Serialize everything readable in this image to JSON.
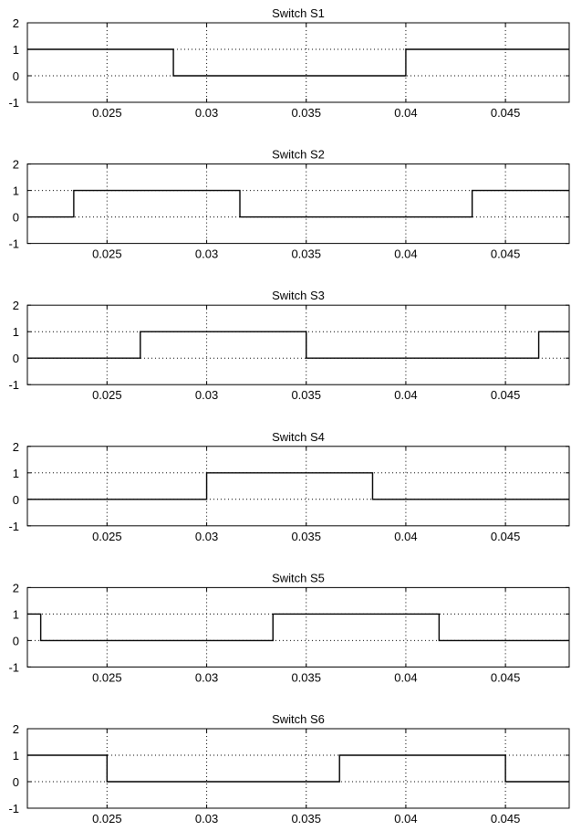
{
  "colors": {
    "background": "#ffffff",
    "line": "#000000",
    "grid": "#000000"
  },
  "chart_data": [
    {
      "type": "line",
      "title": "Switch S1",
      "x": [
        0.021,
        0.02833,
        0.02833,
        0.04,
        0.04,
        0.0482
      ],
      "y": [
        1,
        1,
        0,
        0,
        1,
        1
      ],
      "xlim": [
        0.021,
        0.0482
      ],
      "ylim": [
        -1,
        2
      ],
      "xticks": [
        0.025,
        0.03,
        0.035,
        0.04,
        0.045
      ],
      "xtick_labels": [
        "0.025",
        "0.03",
        "0.035",
        "0.04",
        "0.045"
      ],
      "yticks": [
        -1,
        0,
        1,
        2
      ],
      "ytick_labels": [
        "-1",
        "0",
        "1",
        "2"
      ],
      "grid": true
    },
    {
      "type": "line",
      "title": "Switch S2",
      "x": [
        0.021,
        0.02333,
        0.02333,
        0.03167,
        0.03167,
        0.04333,
        0.04333,
        0.0482
      ],
      "y": [
        0,
        0,
        1,
        1,
        0,
        0,
        1,
        1
      ],
      "xlim": [
        0.021,
        0.0482
      ],
      "ylim": [
        -1,
        2
      ],
      "xticks": [
        0.025,
        0.03,
        0.035,
        0.04,
        0.045
      ],
      "xtick_labels": [
        "0.025",
        "0.03",
        "0.035",
        "0.04",
        "0.045"
      ],
      "yticks": [
        -1,
        0,
        1,
        2
      ],
      "ytick_labels": [
        "-1",
        "0",
        "1",
        "2"
      ],
      "grid": true
    },
    {
      "type": "line",
      "title": "Switch S3",
      "x": [
        0.021,
        0.02667,
        0.02667,
        0.035,
        0.035,
        0.04667,
        0.04667,
        0.0482
      ],
      "y": [
        0,
        0,
        1,
        1,
        0,
        0,
        1,
        1
      ],
      "xlim": [
        0.021,
        0.0482
      ],
      "ylim": [
        -1,
        2
      ],
      "xticks": [
        0.025,
        0.03,
        0.035,
        0.04,
        0.045
      ],
      "xtick_labels": [
        "0.025",
        "0.03",
        "0.035",
        "0.04",
        "0.045"
      ],
      "yticks": [
        -1,
        0,
        1,
        2
      ],
      "ytick_labels": [
        "-1",
        "0",
        "1",
        "2"
      ],
      "grid": true
    },
    {
      "type": "line",
      "title": "Switch S4",
      "x": [
        0.021,
        0.03,
        0.03,
        0.03833,
        0.03833,
        0.0482
      ],
      "y": [
        0,
        0,
        1,
        1,
        0,
        0
      ],
      "xlim": [
        0.021,
        0.0482
      ],
      "ylim": [
        -1,
        2
      ],
      "xticks": [
        0.025,
        0.03,
        0.035,
        0.04,
        0.045
      ],
      "xtick_labels": [
        "0.025",
        "0.03",
        "0.035",
        "0.04",
        "0.045"
      ],
      "yticks": [
        -1,
        0,
        1,
        2
      ],
      "ytick_labels": [
        "-1",
        "0",
        "1",
        "2"
      ],
      "grid": true
    },
    {
      "type": "line",
      "title": "Switch S5",
      "x": [
        0.021,
        0.02167,
        0.02167,
        0.03333,
        0.03333,
        0.04167,
        0.04167,
        0.0482
      ],
      "y": [
        1,
        1,
        0,
        0,
        1,
        1,
        0,
        0
      ],
      "xlim": [
        0.021,
        0.0482
      ],
      "ylim": [
        -1,
        2
      ],
      "xticks": [
        0.025,
        0.03,
        0.035,
        0.04,
        0.045
      ],
      "xtick_labels": [
        "0.025",
        "0.03",
        "0.035",
        "0.04",
        "0.045"
      ],
      "yticks": [
        -1,
        0,
        1,
        2
      ],
      "ytick_labels": [
        "-1",
        "0",
        "1",
        "2"
      ],
      "grid": true
    },
    {
      "type": "line",
      "title": "Switch S6",
      "x": [
        0.021,
        0.025,
        0.025,
        0.03667,
        0.03667,
        0.045,
        0.045,
        0.0482
      ],
      "y": [
        1,
        1,
        0,
        0,
        1,
        1,
        0,
        0
      ],
      "xlim": [
        0.021,
        0.0482
      ],
      "ylim": [
        -1,
        2
      ],
      "xticks": [
        0.025,
        0.03,
        0.035,
        0.04,
        0.045
      ],
      "xtick_labels": [
        "0.025",
        "0.03",
        "0.035",
        "0.04",
        "0.045"
      ],
      "yticks": [
        -1,
        0,
        1,
        2
      ],
      "ytick_labels": [
        "-1",
        "0",
        "1",
        "2"
      ],
      "grid": true
    }
  ]
}
